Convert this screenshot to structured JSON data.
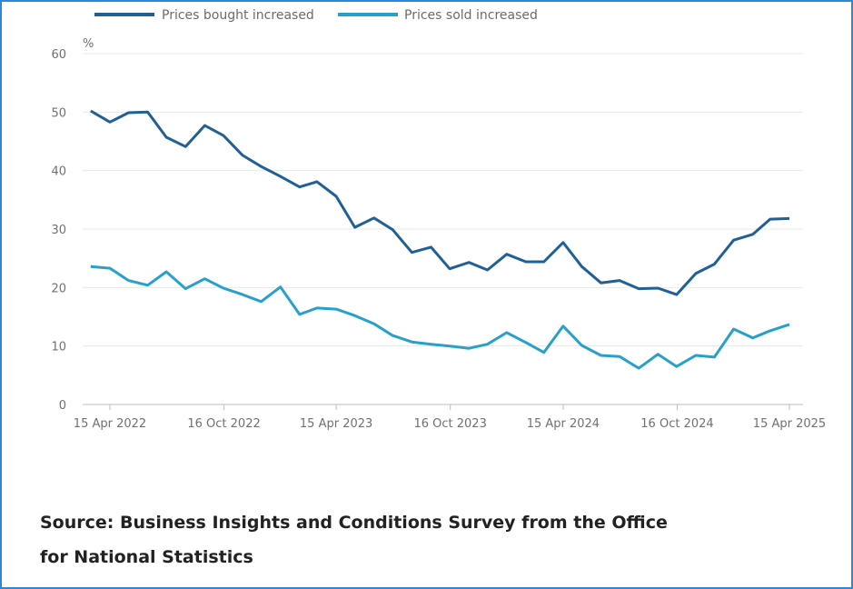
{
  "chart_data": {
    "type": "line",
    "title": "",
    "xlabel": "",
    "ylabel": "%",
    "ylim": [
      0,
      60
    ],
    "yticks": [
      0,
      10,
      20,
      30,
      40,
      50,
      60
    ],
    "xticks": [
      "15 Apr 2022",
      "16 Oct 2022",
      "15 Apr 2023",
      "16 Oct 2023",
      "15 Apr 2024",
      "16 Oct 2024",
      "15 Apr 2025"
    ],
    "xtick_dates": [
      "2022-04-15",
      "2022-10-16",
      "2023-04-15",
      "2023-10-16",
      "2024-04-15",
      "2024-10-16",
      "2025-04-15"
    ],
    "grid": "horizontal",
    "legend": "top",
    "x": [
      "2022-03-15",
      "2022-04-15",
      "2022-05-15",
      "2022-06-15",
      "2022-07-15",
      "2022-08-15",
      "2022-09-15",
      "2022-10-15",
      "2022-11-15",
      "2022-12-15",
      "2023-01-15",
      "2023-02-15",
      "2023-03-15",
      "2023-04-15",
      "2023-05-15",
      "2023-06-15",
      "2023-07-15",
      "2023-08-15",
      "2023-09-15",
      "2023-10-15",
      "2023-11-15",
      "2023-12-15",
      "2024-01-15",
      "2024-02-15",
      "2024-03-15",
      "2024-04-15",
      "2024-05-15",
      "2024-06-15",
      "2024-07-15",
      "2024-08-15",
      "2024-09-15",
      "2024-10-15",
      "2024-11-15",
      "2024-12-15",
      "2025-01-15",
      "2025-02-15",
      "2025-03-15",
      "2025-04-15"
    ],
    "series": [
      {
        "name": "Prices bought increased",
        "color": "#206095",
        "values": [
          50.2,
          48.3,
          49.9,
          50.0,
          45.7,
          44.1,
          47.7,
          46.0,
          42.6,
          40.7,
          39.0,
          37.2,
          38.1,
          35.6,
          30.3,
          31.9,
          29.9,
          26.0,
          26.9,
          23.2,
          24.3,
          23.0,
          25.7,
          24.4,
          24.4,
          27.7,
          23.6,
          20.8,
          21.2,
          19.8,
          19.9,
          18.8,
          22.4,
          24.0,
          28.1,
          29.1,
          31.7,
          31.8
        ]
      },
      {
        "name": "Prices sold increased",
        "color": "#27a0cc",
        "values": [
          23.6,
          23.3,
          21.2,
          20.4,
          22.7,
          19.8,
          21.5,
          19.9,
          18.8,
          17.6,
          20.1,
          15.4,
          16.5,
          16.3,
          15.2,
          13.8,
          11.8,
          10.7,
          10.3,
          10.0,
          9.6,
          10.3,
          12.3,
          10.6,
          8.9,
          13.4,
          10.1,
          8.4,
          8.2,
          6.2,
          8.6,
          6.5,
          8.4,
          8.1,
          12.9,
          11.4,
          12.6,
          13.7
        ]
      }
    ]
  },
  "source": "Source: Business Insights and Conditions Survey from the Office for National Statistics"
}
